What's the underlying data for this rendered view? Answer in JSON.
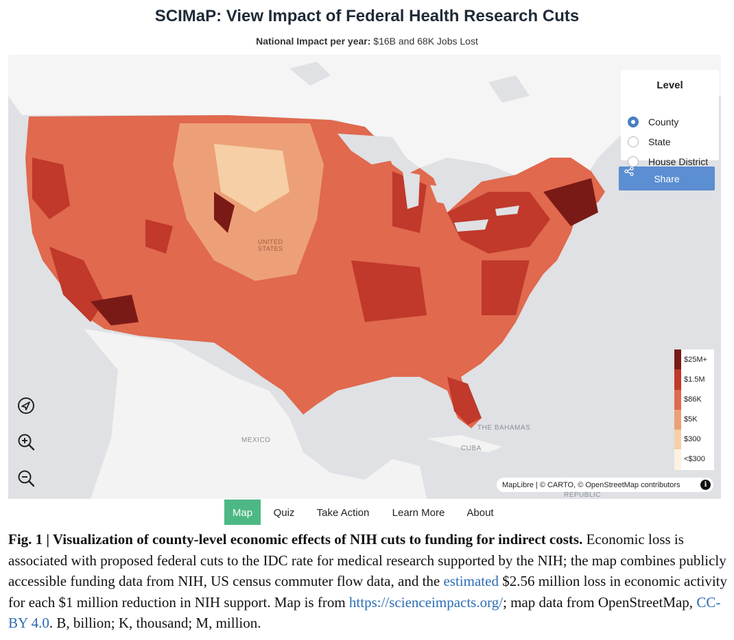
{
  "header": {
    "title": "SCIMaP: View Impact of Federal Health Research Cuts",
    "subtitle_bold": "National Impact per year:",
    "subtitle_rest": " $16B and 68K Jobs Lost"
  },
  "map": {
    "labels": {
      "united_states": "UNITED\nSTATES",
      "mexico": "MEXICO",
      "bahamas": "THE BAHAMAS",
      "cuba": "CUBA",
      "republic": "REPUBLIC"
    },
    "level_panel": {
      "title": "Level",
      "options": [
        {
          "label": "County",
          "checked": true
        },
        {
          "label": "State",
          "checked": false
        },
        {
          "label": "House District",
          "checked": false
        }
      ]
    },
    "share_label": "Share",
    "controls": [
      "locate-icon",
      "zoom-in-icon",
      "zoom-out-icon"
    ],
    "legend": [
      {
        "label": "$25M+",
        "color": "#7a1a16"
      },
      {
        "label": "$1.5M",
        "color": "#c0392b"
      },
      {
        "label": "$86K",
        "color": "#e0694e"
      },
      {
        "label": "$5K",
        "color": "#eda077"
      },
      {
        "label": "$300",
        "color": "#f6cfa6"
      },
      {
        "label": "<$300",
        "color": "#fdf1e2"
      }
    ],
    "attribution": "MapLibre | © CARTO, © OpenStreetMap contributors"
  },
  "nav": {
    "items": [
      "Map",
      "Quiz",
      "Take Action",
      "Learn More",
      "About"
    ],
    "active": "Map"
  },
  "caption": {
    "figure_label": "Fig. 1 | Visualization of county-level economic effects of NIH cuts to funding for indirect costs.",
    "text_1": " Economic loss is associated with proposed federal cuts to the IDC rate for medical research supported by the NIH; the map combines publicly accessible funding data from NIH, US census commuter flow data, and the ",
    "link_estimated": "estimated",
    "text_2": " $2.56 million loss in economic activity for each $1 million reduction in NIH support. Map is from ",
    "link_url": "https://scienceimpacts.org/",
    "text_3": "; map data from OpenStreetMap, ",
    "link_license": "CC-BY 4.0",
    "text_4": ". B, billion; K, thousand; M, million."
  }
}
